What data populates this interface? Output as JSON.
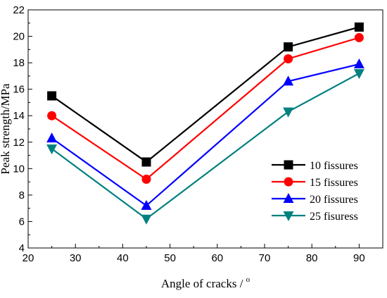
{
  "chart_data": {
    "type": "line",
    "title": "",
    "xlabel": "Angle of cracks / ",
    "xlabel_sup": "o",
    "ylabel": "Peak strength/MPa",
    "xlim": [
      20,
      95
    ],
    "ylim": [
      4,
      22
    ],
    "x_ticks": [
      "20",
      "30",
      "40",
      "50",
      "60",
      "70",
      "80",
      "90"
    ],
    "y_ticks": [
      "4",
      "6",
      "8",
      "10",
      "12",
      "14",
      "16",
      "18",
      "20",
      "22"
    ],
    "x": [
      25,
      45,
      75,
      90
    ],
    "grid": false,
    "legend_position": "right",
    "series": [
      {
        "name": "10  fissures",
        "values": [
          15.5,
          10.5,
          19.2,
          20.7
        ],
        "color": "#000000",
        "marker": "square"
      },
      {
        "name": "15 fissures",
        "values": [
          14.0,
          9.2,
          18.3,
          19.9
        ],
        "color": "#ff0000",
        "marker": "circle"
      },
      {
        "name": "20 fissures",
        "values": [
          12.3,
          7.2,
          16.6,
          17.9
        ],
        "color": "#0000ff",
        "marker": "triangle-up"
      },
      {
        "name": "25 fisuress",
        "values": [
          11.5,
          6.2,
          14.3,
          17.2
        ],
        "color": "#008080",
        "marker": "triangle-down"
      }
    ]
  }
}
